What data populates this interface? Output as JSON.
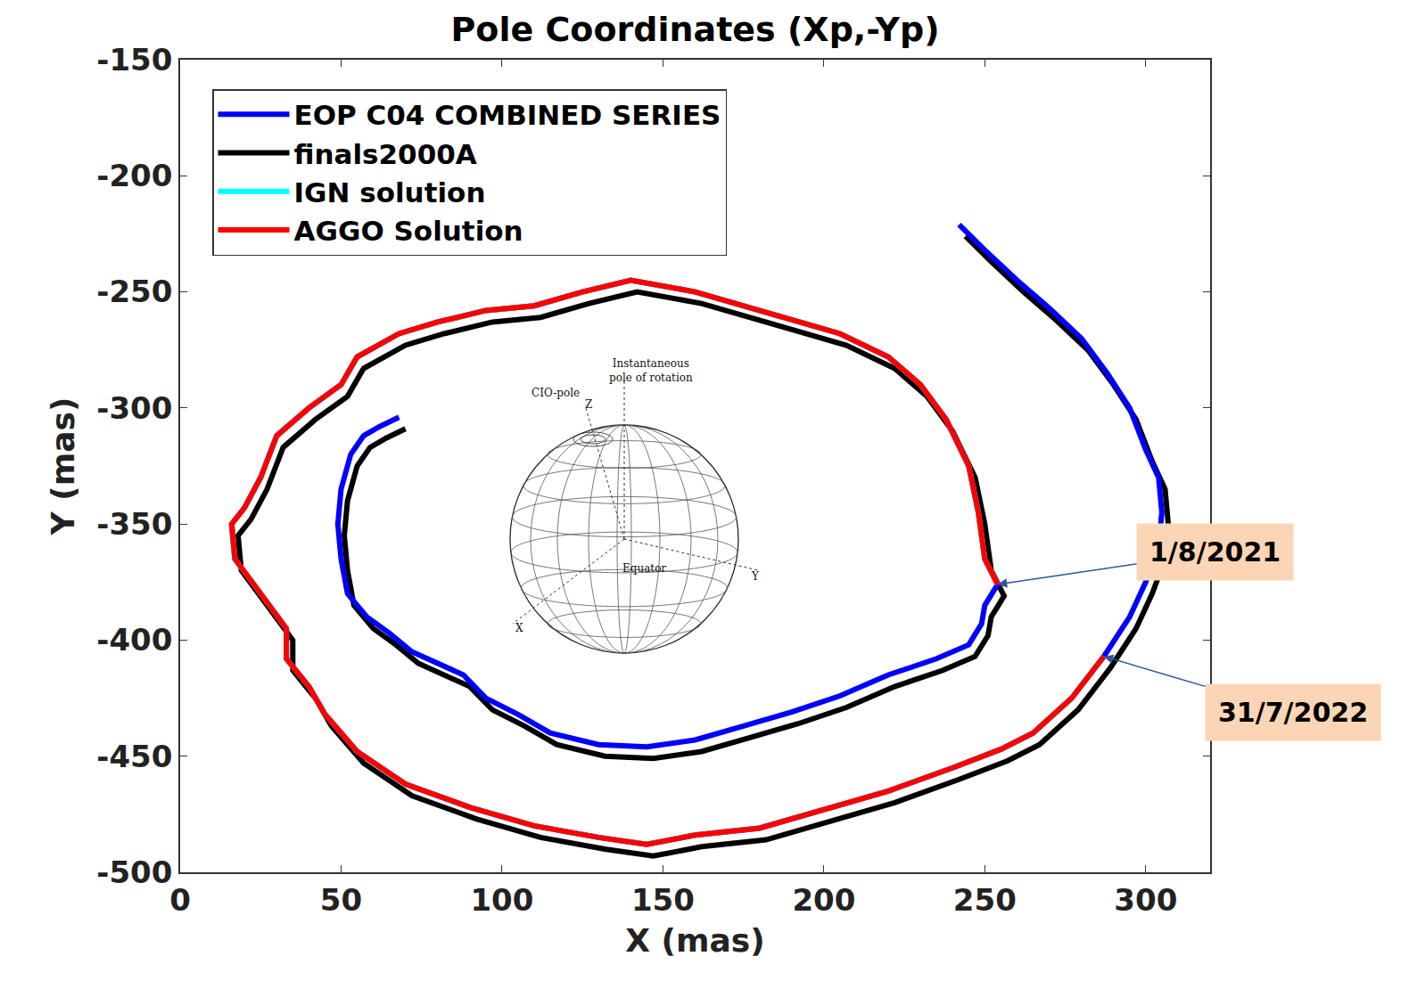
{
  "chart_data": {
    "type": "line",
    "title": "Pole Coordinates (Xp,-Yp)",
    "x_label": "X (mas)",
    "y_label": "Y (mas)",
    "xlim": [
      0,
      320
    ],
    "ylim": [
      -500,
      -150
    ],
    "xticks": [
      0,
      50,
      100,
      150,
      200,
      250,
      300
    ],
    "yticks": [
      -500,
      -450,
      -400,
      -350,
      -300,
      -250,
      -200,
      -150
    ],
    "grid": false,
    "legend": "upper left",
    "series": [
      {
        "name": "EOP C04 COMBINED SERIES",
        "color": "#0000ff",
        "x": [
          68,
          62,
          57,
          53,
          50,
          49,
          50,
          52,
          58,
          65,
          72,
          80,
          88,
          95,
          105,
          115,
          130,
          145,
          160,
          175,
          190,
          205,
          220,
          235,
          245,
          249,
          250,
          254,
          250,
          248,
          245,
          238,
          230,
          220,
          205,
          190,
          175,
          160,
          140,
          125,
          110,
          95,
          80,
          68,
          55,
          50,
          40,
          30,
          25,
          20,
          16,
          17,
          25,
          33,
          33,
          40,
          45,
          55,
          70,
          90,
          110,
          130,
          145,
          160,
          180,
          200,
          220,
          240,
          255,
          265,
          277,
          287,
          295,
          300,
          304,
          305,
          304,
          300,
          295,
          288,
          280,
          270,
          260,
          250,
          242
        ],
        "values": [
          -304,
          -308,
          -312,
          -320,
          -335,
          -350,
          -365,
          -380,
          -390,
          -397,
          -405,
          -410,
          -415,
          -425,
          -432,
          -440,
          -445,
          -446,
          -443,
          -437,
          -431,
          -424,
          -415,
          -408,
          -402,
          -393,
          -385,
          -376,
          -365,
          -345,
          -325,
          -305,
          -290,
          -278,
          -268,
          -262,
          -256,
          -250,
          -245,
          -250,
          -256,
          -258,
          -263,
          -268,
          -278,
          -290,
          -300,
          -312,
          -330,
          -343,
          -350,
          -365,
          -380,
          -395,
          -408,
          -420,
          -432,
          -448,
          -462,
          -472,
          -480,
          -485,
          -488,
          -484,
          -481,
          -473,
          -465,
          -455,
          -447,
          -440,
          -425,
          -407,
          -390,
          -375,
          -360,
          -345,
          -330,
          -318,
          -300,
          -285,
          -270,
          -257,
          -245,
          -232,
          -221
        ]
      },
      {
        "name": "finals2000A",
        "color": "#000000",
        "x": [
          70,
          64,
          59,
          55,
          52,
          51,
          52,
          54,
          60,
          67,
          74,
          82,
          90,
          97,
          107,
          117,
          132,
          147,
          162,
          177,
          192,
          207,
          222,
          237,
          247,
          251,
          252,
          256,
          252,
          250,
          247,
          240,
          232,
          222,
          207,
          192,
          177,
          162,
          142,
          127,
          112,
          97,
          82,
          70,
          57,
          52,
          42,
          32,
          27,
          22,
          18,
          19,
          27,
          35,
          35,
          42,
          47,
          57,
          72,
          92,
          112,
          132,
          147,
          162,
          182,
          202,
          222,
          242,
          257,
          267,
          279,
          289,
          297,
          302,
          306,
          307,
          306,
          302,
          297,
          290,
          282,
          272,
          262,
          252,
          244
        ],
        "values": [
          -309,
          -313,
          -317,
          -325,
          -340,
          -355,
          -370,
          -385,
          -395,
          -402,
          -410,
          -415,
          -420,
          -430,
          -437,
          -445,
          -450,
          -451,
          -448,
          -442,
          -436,
          -429,
          -420,
          -413,
          -407,
          -398,
          -390,
          -381,
          -370,
          -350,
          -330,
          -310,
          -295,
          -283,
          -273,
          -267,
          -261,
          -255,
          -250,
          -255,
          -261,
          -263,
          -268,
          -273,
          -283,
          -295,
          -305,
          -317,
          -335,
          -348,
          -355,
          -370,
          -385,
          -400,
          -413,
          -425,
          -437,
          -453,
          -467,
          -477,
          -485,
          -490,
          -493,
          -489,
          -486,
          -478,
          -470,
          -460,
          -452,
          -445,
          -430,
          -412,
          -395,
          -380,
          -365,
          -350,
          -335,
          -323,
          -305,
          -290,
          -275,
          -262,
          -250,
          -237,
          -226
        ]
      },
      {
        "name": "IGN solution",
        "color": "#00ffff",
        "x": [
          254,
          250,
          248,
          245,
          238,
          230,
          220,
          205,
          190,
          175,
          160,
          140,
          125,
          110,
          95,
          80,
          68,
          55,
          50,
          40,
          30,
          25,
          20,
          16,
          17,
          25,
          33,
          33,
          40,
          45,
          55,
          70,
          90,
          110,
          130,
          145,
          160,
          180,
          200,
          220,
          240,
          255,
          265,
          277,
          287
        ],
        "values": [
          -376,
          -365,
          -345,
          -325,
          -305,
          -290,
          -278,
          -268,
          -262,
          -256,
          -250,
          -245,
          -250,
          -256,
          -258,
          -263,
          -268,
          -278,
          -290,
          -300,
          -312,
          -330,
          -343,
          -350,
          -365,
          -380,
          -395,
          -408,
          -420,
          -432,
          -448,
          -462,
          -472,
          -480,
          -485,
          -488,
          -484,
          -481,
          -473,
          -465,
          -455,
          -447,
          -440,
          -425,
          -407
        ]
      },
      {
        "name": "AGGO Solution",
        "color": "#ff0000",
        "x": [
          254,
          250,
          248,
          245,
          238,
          230,
          220,
          205,
          190,
          175,
          160,
          140,
          125,
          110,
          95,
          80,
          68,
          55,
          50,
          40,
          30,
          25,
          20,
          16,
          17,
          25,
          33,
          33,
          40,
          45,
          55,
          70,
          90,
          110,
          130,
          145,
          160,
          180,
          200,
          220,
          240,
          255,
          265,
          277,
          287
        ],
        "values": [
          -376,
          -365,
          -345,
          -325,
          -305,
          -290,
          -278,
          -268,
          -262,
          -256,
          -250,
          -245,
          -250,
          -256,
          -258,
          -263,
          -268,
          -278,
          -290,
          -300,
          -312,
          -330,
          -343,
          -350,
          -365,
          -380,
          -395,
          -408,
          -420,
          -432,
          -448,
          -462,
          -472,
          -480,
          -485,
          -488,
          -484,
          -481,
          -473,
          -465,
          -455,
          -447,
          -440,
          -425,
          -407
        ]
      }
    ],
    "annotations": [
      {
        "text": "1/8/2021",
        "x": 254,
        "y": -376
      },
      {
        "text": "31/7/2022",
        "x": 287,
        "y": -407
      }
    ],
    "inset_labels": [
      "Instantaneous pole of rotation",
      "CIO-pole",
      "Z",
      "Equator",
      "X",
      "Y"
    ]
  }
}
